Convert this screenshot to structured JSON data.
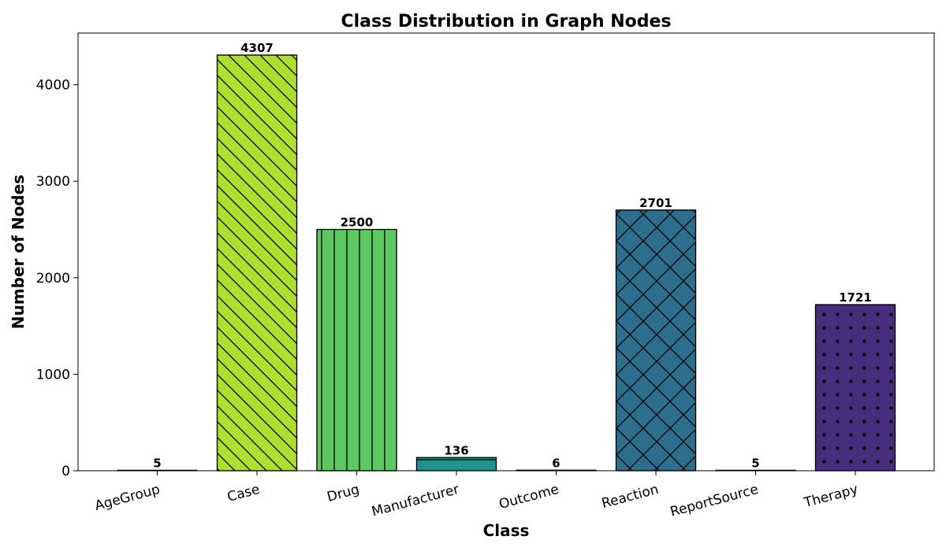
{
  "chart_data": {
    "type": "bar",
    "title": "Class Distribution in Graph Nodes",
    "xlabel": "Class",
    "ylabel": "Number of Nodes",
    "categories": [
      "AgeGroup",
      "Case",
      "Drug",
      "Manufacturer",
      "Outcome",
      "Reaction",
      "ReportSource",
      "Therapy"
    ],
    "values": [
      5,
      4307,
      2500,
      136,
      6,
      2701,
      5,
      1721
    ],
    "data_labels": [
      "5",
      "4307",
      "2500",
      "136",
      "6",
      "2701",
      "5",
      "1721"
    ],
    "ylim": [
      0,
      4522
    ],
    "yticks": [
      0,
      1000,
      2000,
      3000,
      4000
    ],
    "ytick_labels": [
      "0",
      "1000",
      "2000",
      "3000",
      "4000"
    ],
    "grid": false,
    "colors": [
      "#440154",
      "#addf2e",
      "#5ec962",
      "#21918c",
      "#3b528b",
      "#2c6e8c",
      "#482878",
      "#472d7b"
    ],
    "hatches": [
      "none",
      "diagonal",
      "vertical",
      "horizontal",
      "none",
      "crosshatch",
      "none",
      "dots"
    ]
  }
}
